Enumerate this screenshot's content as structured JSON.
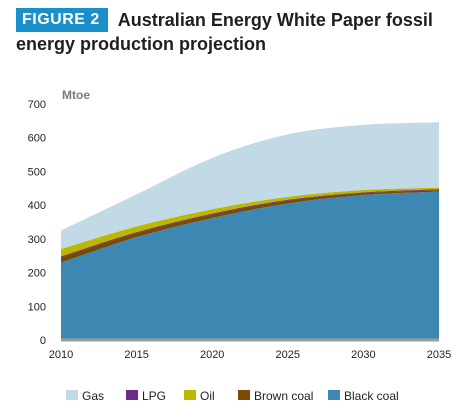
{
  "figure": {
    "label": "FIGURE 2",
    "title_line1": "Australian Energy White Paper fossil",
    "title_line2": "energy production projection"
  },
  "colors": {
    "badge": "#1a8fc9",
    "gas": "#c2d9e6",
    "lpg": "#6a2c86",
    "oil": "#bcb800",
    "brown_coal": "#7a4a00",
    "black_coal": "#3d87b3"
  },
  "chart_data": {
    "type": "area",
    "stacked": true,
    "ylabel": "Mtoe",
    "xlim": [
      2010,
      2035
    ],
    "ylim": [
      0,
      700
    ],
    "x_ticks": [
      "2010",
      "2015",
      "2020",
      "2025",
      "2030",
      "2035"
    ],
    "y_ticks": [
      "0",
      "100",
      "200",
      "300",
      "400",
      "500",
      "600",
      "700"
    ],
    "x": [
      2010,
      2015,
      2020,
      2025,
      2030,
      2035
    ],
    "series": [
      {
        "name": "Black coal",
        "color": "#3d87b3",
        "values": [
          230,
          305,
          362,
          405,
          430,
          440
        ]
      },
      {
        "name": "Brown coal",
        "color": "#7a4a00",
        "values": [
          15,
          12,
          10,
          8,
          6,
          5
        ]
      },
      {
        "name": "LPG",
        "color": "#6a2c86",
        "values": [
          3,
          3,
          3,
          3,
          2,
          2
        ]
      },
      {
        "name": "Oil",
        "color": "#bcb800",
        "values": [
          22,
          17,
          13,
          9,
          7,
          5
        ]
      },
      {
        "name": "Gas",
        "color": "#c2d9e6",
        "values": [
          55,
          95,
          152,
          185,
          193,
          194
        ]
      }
    ],
    "legend": {
      "placement": "bottom",
      "order": [
        "Gas",
        "LPG",
        "Oil",
        "Brown coal",
        "Black coal"
      ]
    },
    "grid": false
  }
}
